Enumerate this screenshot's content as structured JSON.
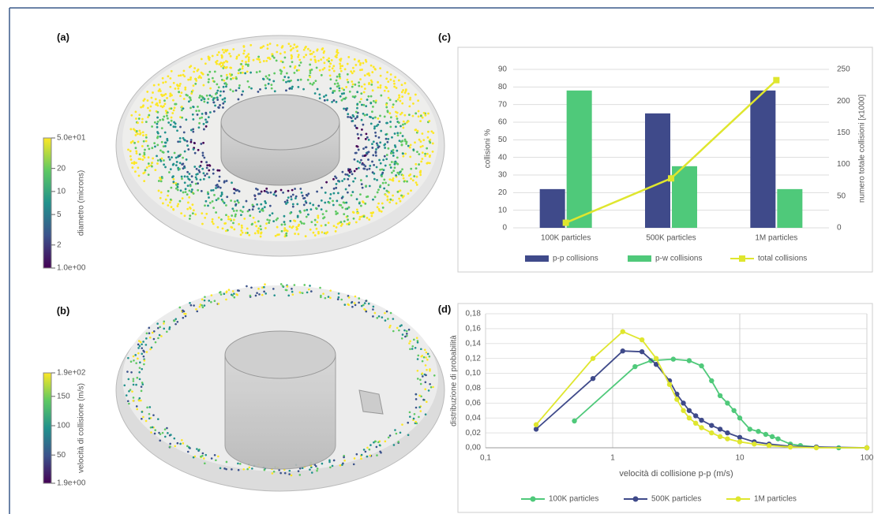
{
  "chart_data": [
    {
      "type": "colorbar",
      "label": "(a)",
      "title": "diametro (microns)",
      "log": true,
      "ylim": [
        1,
        50
      ],
      "yticks": [
        {
          "value": 50,
          "label": "5.0e+01"
        },
        20,
        10,
        5,
        2,
        {
          "value": 1,
          "label": "1.0e+00"
        }
      ],
      "colors": [
        "#440154",
        "#3b528b",
        "#21918c",
        "#5ec962",
        "#fde725"
      ]
    },
    {
      "type": "colorbar",
      "label": "(b)",
      "title": "velocità di collisione (m/s)",
      "log": false,
      "ylim": [
        1.9,
        190
      ],
      "yticks": [
        {
          "value": 190,
          "label": "1.9e+02"
        },
        150,
        100,
        50,
        {
          "value": 1.9,
          "label": "1.9e+00"
        }
      ],
      "colors": [
        "#440154",
        "#3b528b",
        "#21918c",
        "#5ec962",
        "#fde725"
      ]
    },
    {
      "type": "bar",
      "label": "(c)",
      "ylabel": "collisioni %",
      "y2label": "numero totale collisioni [x1000]",
      "categories": [
        "100K particles",
        "500K particles",
        "1M particles"
      ],
      "series": [
        {
          "name": "p-p collisions",
          "color": "#3f4a8a",
          "values": [
            22,
            65,
            78
          ]
        },
        {
          "name": "p-w collisions",
          "color": "#4fc97a",
          "values": [
            78,
            35,
            22
          ]
        },
        {
          "name": "total collisions",
          "color": "#dfe62e",
          "axis": "y2",
          "kind": "line",
          "values": [
            8,
            78,
            233
          ]
        }
      ],
      "ylim": [
        0,
        90
      ],
      "yticks": [
        0,
        10,
        20,
        30,
        40,
        50,
        60,
        70,
        80,
        90
      ],
      "y2lim": [
        0,
        250
      ],
      "y2ticks": [
        0,
        50,
        100,
        150,
        200,
        250
      ],
      "grid": true,
      "legend": "bottom"
    },
    {
      "type": "line",
      "label": "(d)",
      "xlabel": "velocità di collisione p-p (m/s)",
      "ylabel": "distribuzione di probabilità",
      "log_x": true,
      "xlim": [
        0.1,
        100
      ],
      "xticks": [
        {
          "value": 0.1,
          "label": "0,1"
        },
        1,
        10,
        100
      ],
      "ylim": [
        0,
        0.18
      ],
      "yticks": [
        {
          "value": 0,
          "label": "0,00"
        },
        {
          "value": 0.02,
          "label": "0,02"
        },
        {
          "value": 0.04,
          "label": "0,04"
        },
        {
          "value": 0.06,
          "label": "0,06"
        },
        {
          "value": 0.08,
          "label": "0,08"
        },
        {
          "value": 0.1,
          "label": "0,10"
        },
        {
          "value": 0.12,
          "label": "0,12"
        },
        {
          "value": 0.14,
          "label": "0,14"
        },
        {
          "value": 0.16,
          "label": "0,16"
        },
        {
          "value": 0.18,
          "label": "0,18"
        }
      ],
      "grid": true,
      "legend": "bottom",
      "series": [
        {
          "name": "100K particles",
          "color": "#4fc97a",
          "x": [
            0.5,
            1.5,
            2,
            3,
            4,
            5,
            6,
            7,
            8,
            9,
            10,
            12,
            14,
            16,
            18,
            20,
            25,
            30,
            40,
            60,
            100
          ],
          "values": [
            0.036,
            0.109,
            0.117,
            0.119,
            0.117,
            0.11,
            0.09,
            0.07,
            0.06,
            0.05,
            0.04,
            0.025,
            0.022,
            0.018,
            0.015,
            0.012,
            0.005,
            0.003,
            0.001,
            0,
            0
          ]
        },
        {
          "name": "500K particles",
          "color": "#3f4a8a",
          "x": [
            0.25,
            0.7,
            1.2,
            1.7,
            2.2,
            2.8,
            3.2,
            3.6,
            4,
            4.5,
            5,
            6,
            7,
            8,
            10,
            13,
            17,
            25,
            40,
            100
          ],
          "values": [
            0.025,
            0.093,
            0.13,
            0.129,
            0.112,
            0.09,
            0.072,
            0.06,
            0.05,
            0.043,
            0.037,
            0.03,
            0.025,
            0.02,
            0.014,
            0.008,
            0.005,
            0.002,
            0.001,
            0
          ]
        },
        {
          "name": "1M particles",
          "color": "#dfe62e",
          "x": [
            0.25,
            0.7,
            1.2,
            1.7,
            2.2,
            2.8,
            3.2,
            3.6,
            4,
            4.5,
            5,
            6,
            7,
            8,
            10,
            13,
            17,
            25,
            40,
            100
          ],
          "values": [
            0.031,
            0.12,
            0.156,
            0.145,
            0.12,
            0.085,
            0.065,
            0.05,
            0.04,
            0.033,
            0.027,
            0.02,
            0.015,
            0.012,
            0.008,
            0.005,
            0.003,
            0.001,
            0,
            0
          ]
        }
      ]
    }
  ]
}
